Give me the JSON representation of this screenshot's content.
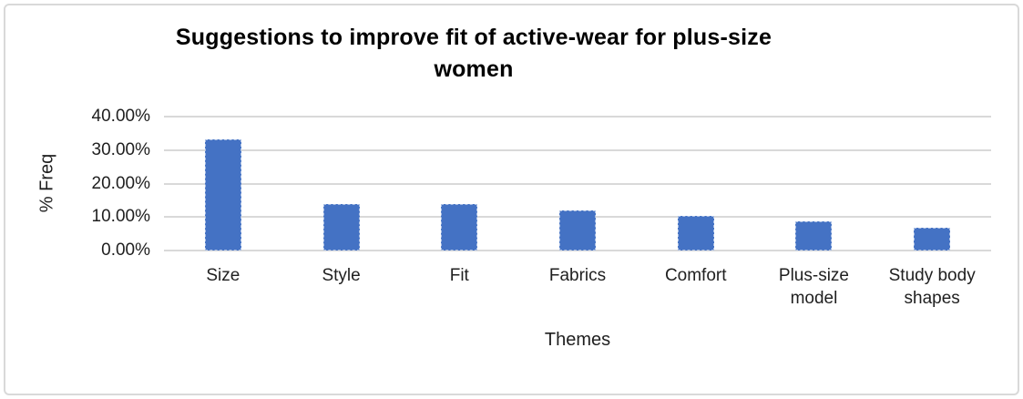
{
  "chart_data": {
    "type": "bar",
    "title": "Suggestions to improve fit of active-wear for plus-size women",
    "title_lines": [
      "Suggestions to improve fit of active-wear for plus-size",
      "women"
    ],
    "categories": [
      "Size",
      "Style",
      "Fit",
      "Fabrics",
      "Comfort",
      "Plus-size model",
      "Study body shapes"
    ],
    "values": [
      33.1,
      13.8,
      13.8,
      12.0,
      10.4,
      8.6,
      6.9
    ],
    "value_unit": "%",
    "xlabel": "Themes",
    "ylabel": "% Freq",
    "ylim": [
      0,
      40
    ],
    "yticks": [
      0,
      10,
      20,
      30,
      40
    ],
    "ytick_labels": [
      "0.00%",
      "10.00%",
      "20.00%",
      "30.00%",
      "40.00%"
    ],
    "grid": true,
    "legend": false,
    "bar_color": "#4472C4",
    "gridline_color": "#d9d9d9",
    "title_color": "#000000",
    "frame_border_color": "#d9d9d9"
  }
}
